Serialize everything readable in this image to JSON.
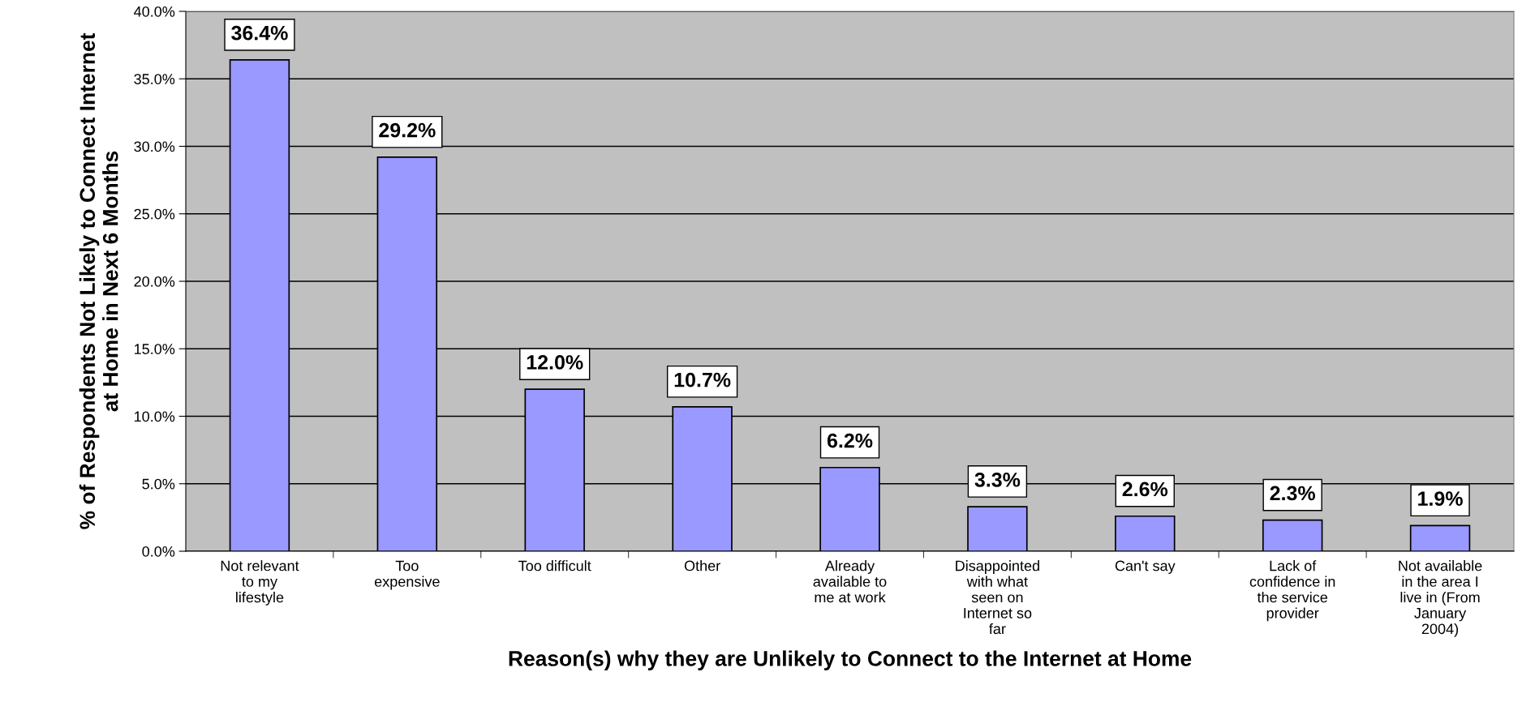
{
  "chart_data": {
    "type": "bar",
    "xlabel": "Reason(s) why they are Unlikely to Connect to the Internet at Home",
    "ylabel": "% of Respondents Not Likely to Connect Internet\nat Home in Next 6 Months",
    "categories": [
      "Not relevant\nto my\nlifestyle",
      "Too\nexpensive",
      "Too difficult",
      "Other",
      "Already\navailable to\nme at work",
      "Disappointed\nwith what\nseen on\nInternet so\nfar",
      "Can't say",
      "Lack of\nconfidence in\nthe service\nprovider",
      "Not available\nin the area I\nlive in (From\nJanuary\n2004)"
    ],
    "values": [
      36.4,
      29.2,
      12.0,
      10.7,
      6.2,
      3.3,
      2.6,
      2.3,
      1.9
    ],
    "value_labels": [
      "36.4%",
      "29.2%",
      "12.0%",
      "10.7%",
      "6.2%",
      "3.3%",
      "2.6%",
      "2.3%",
      "1.9%"
    ],
    "color": "#9999ff",
    "ylim": [
      0,
      40
    ],
    "yticks": [
      {
        "value": 0,
        "label": "0.0%"
      },
      {
        "value": 5,
        "label": "5.0%"
      },
      {
        "value": 10,
        "label": "10.0%"
      },
      {
        "value": 15,
        "label": "15.0%"
      },
      {
        "value": 20,
        "label": "20.0%"
      },
      {
        "value": 25,
        "label": "25.0%"
      },
      {
        "value": 30,
        "label": "30.0%"
      },
      {
        "value": 35,
        "label": "35.0%"
      },
      {
        "value": 40,
        "label": "40.0%"
      }
    ],
    "grid": "y",
    "legend": false
  }
}
